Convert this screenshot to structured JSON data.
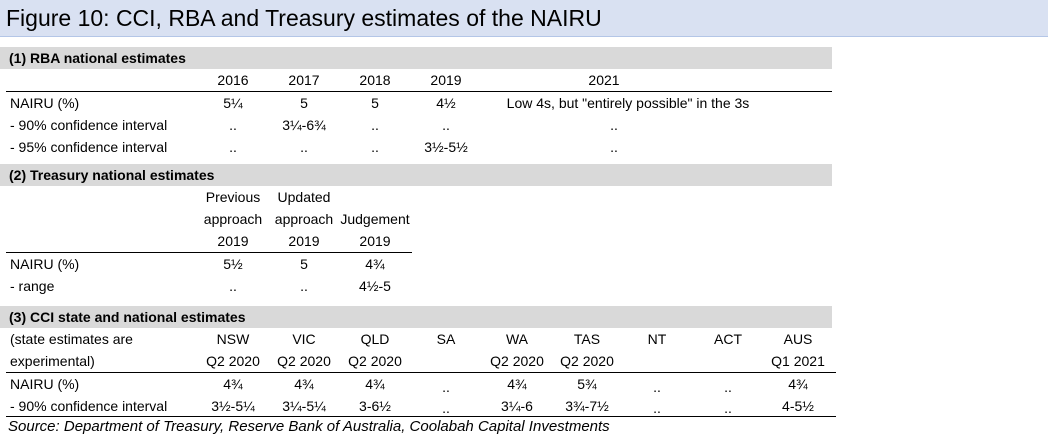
{
  "figure_title": "Figure 10: CCI, RBA and Treasury estimates of the NAIRU",
  "section1": {
    "header": "(1) RBA national estimates",
    "columns": [
      "2016",
      "2017",
      "2018",
      "2019",
      "2021"
    ],
    "rows": [
      {
        "label": "NAIRU (%)",
        "values": [
          "5¼",
          "5",
          "5",
          "4½",
          "Low 4s, but \"entirely possible\" in the 3s"
        ]
      },
      {
        "label": " - 90% confidence interval",
        "values": [
          "..",
          "3¼-6¾",
          "..",
          "..",
          ".."
        ]
      },
      {
        "label": " - 95% confidence interval",
        "values": [
          "..",
          "..",
          "..",
          "3½-5½",
          ".."
        ]
      }
    ]
  },
  "section2": {
    "header": "(2) Treasury national estimates",
    "columns": [
      {
        "line1": "Previous",
        "line2": "approach",
        "year": "2019"
      },
      {
        "line1": "Updated",
        "line2": "approach",
        "year": "2019"
      },
      {
        "line1": "",
        "line2": "Judgement",
        "year": "2019"
      }
    ],
    "rows": [
      {
        "label": "NAIRU (%)",
        "values": [
          "5½",
          "5",
          "4¾"
        ]
      },
      {
        "label": " - range",
        "values": [
          "..",
          "..",
          "4½-5"
        ]
      }
    ]
  },
  "section3": {
    "header": "(3) CCI state and national estimates",
    "note_line1": "(state estimates are",
    "note_line2": "experimental)",
    "columns": [
      {
        "state": "NSW",
        "period": "Q2 2020"
      },
      {
        "state": "VIC",
        "period": "Q2 2020"
      },
      {
        "state": "QLD",
        "period": "Q2 2020"
      },
      {
        "state": "SA",
        "period": ""
      },
      {
        "state": "WA",
        "period": "Q2 2020"
      },
      {
        "state": "TAS",
        "period": "Q2 2020"
      },
      {
        "state": "NT",
        "period": ""
      },
      {
        "state": "ACT",
        "period": ""
      },
      {
        "state": "AUS",
        "period": "Q1 2021"
      }
    ],
    "rows": [
      {
        "label": "NAIRU (%)",
        "values": [
          "4¾",
          "4¾",
          "4¾",
          "..",
          "4¾",
          "5¾",
          "..",
          "..",
          "4¾"
        ]
      },
      {
        "label": " - 90% confidence interval",
        "values": [
          "3½-5¼",
          "3¼-5¼",
          "3-6½",
          "..",
          "3¼-6",
          "3¾-7½",
          "..",
          "..",
          "4-5½"
        ]
      }
    ]
  },
  "source": "Source: Department of Treasury, Reserve Bank of Australia, Coolabah Capital Investments"
}
